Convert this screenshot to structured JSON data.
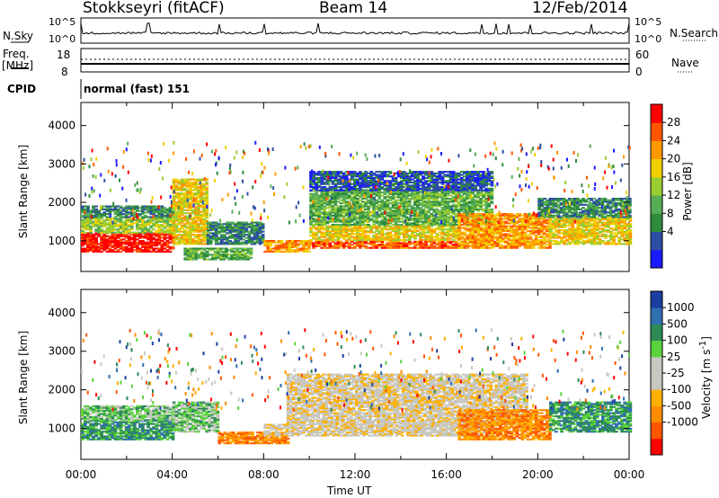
{
  "header": {
    "station": "Stokkseyri (fitACF)",
    "beam": "Beam 14",
    "date": "12/Feb/2014"
  },
  "params": {
    "nsky_label": "N.Sky",
    "nsky_ticks": [
      "10^5",
      "10^0"
    ],
    "nsearch_label": "N.Search",
    "freq_label_1": "Freq.",
    "freq_label_2": "[MHz]",
    "freq_ticks": [
      "18",
      "8"
    ],
    "nave_ticks": [
      "60",
      "0"
    ],
    "nave_label": "Nave",
    "cpid_label": "CPID",
    "cpid_value": "normal (fast) 151"
  },
  "colors": {
    "power": [
      "#1a1aff",
      "#2d4fa3",
      "#2e8b3c",
      "#56ad56",
      "#9acd32",
      "#f0d000",
      "#ff9900",
      "#ff5500",
      "#ff0000"
    ],
    "velocity": [
      "#ff0000",
      "#ff5500",
      "#ff8c00",
      "#ffb000",
      "#c8c8c0",
      "#c8c8c0",
      "#5ad23c",
      "#2e8b57",
      "#2f6fb0",
      "#1a3fa0"
    ]
  },
  "chart_data": [
    {
      "type": "heatmap",
      "name_in_image": "Power panel",
      "ylabel": "Slant Range [km]",
      "ylim": [
        200,
        4600
      ],
      "yticks": [
        "4000",
        "3000",
        "2000",
        "1000"
      ],
      "colorbar_label": "Power [dB]",
      "colorbar_ticks": [
        "28",
        "24",
        "20",
        "16",
        "12",
        "8",
        "4"
      ],
      "xlim_hours": [
        0,
        24
      ],
      "bands": [
        {
          "t0": 0.0,
          "t1": 4.0,
          "r0": 700,
          "r1": 1200,
          "level": 8
        },
        {
          "t0": 0.0,
          "t1": 4.0,
          "r0": 1200,
          "r1": 1600,
          "level": 4
        },
        {
          "t0": 0.0,
          "t1": 4.0,
          "r0": 1600,
          "r1": 1900,
          "level": 2
        },
        {
          "t0": 4.0,
          "t1": 5.5,
          "r0": 900,
          "r1": 2600,
          "level": 5
        },
        {
          "t0": 4.5,
          "t1": 7.5,
          "r0": 500,
          "r1": 800,
          "level": 3
        },
        {
          "t0": 5.5,
          "t1": 8.0,
          "r0": 900,
          "r1": 1500,
          "level": 2
        },
        {
          "t0": 8.0,
          "t1": 10.0,
          "r0": 700,
          "r1": 1000,
          "level": 6
        },
        {
          "t0": 10.0,
          "t1": 16.5,
          "r0": 800,
          "r1": 1000,
          "level": 7
        },
        {
          "t0": 10.0,
          "t1": 16.5,
          "r0": 1000,
          "r1": 1400,
          "level": 5
        },
        {
          "t0": 10.0,
          "t1": 18.0,
          "r0": 1400,
          "r1": 2300,
          "level": 3
        },
        {
          "t0": 10.0,
          "t1": 18.0,
          "r0": 2300,
          "r1": 2800,
          "level": 1
        },
        {
          "t0": 16.5,
          "t1": 20.5,
          "r0": 800,
          "r1": 1700,
          "level": 6
        },
        {
          "t0": 20.5,
          "t1": 24.0,
          "r0": 900,
          "r1": 1600,
          "level": 5
        },
        {
          "t0": 20.0,
          "t1": 24.0,
          "r0": 1600,
          "r1": 2100,
          "level": 2
        }
      ]
    },
    {
      "type": "heatmap",
      "name_in_image": "Velocity panel",
      "ylabel": "Slant Range [km]",
      "ylim": [
        200,
        4600
      ],
      "yticks": [
        "4000",
        "3000",
        "2000",
        "1000"
      ],
      "colorbar_label": "Velocity [m s^-1]",
      "colorbar_ticks": [
        "1000",
        "500",
        "100",
        "25",
        "-25",
        "-100",
        "-500",
        "-1000"
      ],
      "xlabel": "Time UT",
      "xticks": [
        "00:00",
        "04:00",
        "08:00",
        "12:00",
        "16:00",
        "20:00",
        "00:00"
      ],
      "bands": [
        {
          "t0": 0.0,
          "t1": 4.0,
          "r0": 700,
          "r1": 1200,
          "level": 7
        },
        {
          "t0": 0.0,
          "t1": 4.0,
          "r0": 1200,
          "r1": 1600,
          "level": 6
        },
        {
          "t0": 4.0,
          "t1": 6.0,
          "r0": 900,
          "r1": 1700,
          "level": 6
        },
        {
          "t0": 6.0,
          "t1": 9.0,
          "r0": 600,
          "r1": 900,
          "level": 2
        },
        {
          "t0": 8.0,
          "t1": 18.0,
          "r0": 800,
          "r1": 1100,
          "level": 4
        },
        {
          "t0": 9.0,
          "t1": 19.5,
          "r0": 1100,
          "r1": 2400,
          "level": 4
        },
        {
          "t0": 16.5,
          "t1": 20.5,
          "r0": 700,
          "r1": 1500,
          "level": 2
        },
        {
          "t0": 20.5,
          "t1": 24.0,
          "r0": 900,
          "r1": 1700,
          "level": 7
        }
      ]
    }
  ]
}
